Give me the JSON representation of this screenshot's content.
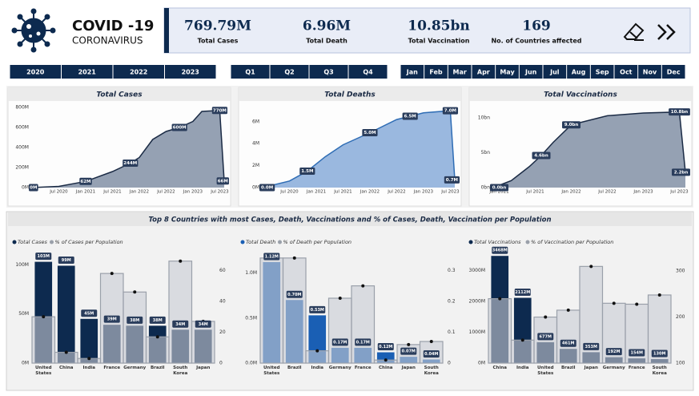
{
  "header": {
    "title": "COVID -19",
    "subtitle": "CORONAVIRUS"
  },
  "kpis": [
    {
      "value": "769.79M",
      "label": "Total Cases"
    },
    {
      "value": "6.96M",
      "label": "Total Death"
    },
    {
      "value": "10.85bn",
      "label": "Total Vaccination"
    },
    {
      "value": "169",
      "label": "No. of Countries affected"
    }
  ],
  "filters": {
    "years": [
      "2020",
      "2021",
      "2022",
      "2023"
    ],
    "quarters": [
      "Q1",
      "Q2",
      "Q3",
      "Q4"
    ],
    "months": [
      "Jan",
      "Feb",
      "Mar",
      "Apr",
      "May",
      "Jun",
      "Jul",
      "Aug",
      "Sep",
      "Oct",
      "Nov",
      "Dec"
    ]
  },
  "section_title": "Top 8 Countries with most Cases, Death, Vaccinations and % of Cases, Death, Vaccination per Population",
  "chart_data": [
    {
      "type": "area",
      "title": "Total Cases",
      "color": "#8a97ab",
      "line_color": "#1b2b45",
      "x": [
        "Jan 2020",
        "Jul 2020",
        "Jan 2021",
        "Jul 2021",
        "Nov 2021",
        "Jan 2022",
        "Apr 2022",
        "Jul 2022",
        "Oct 2022",
        "Jan 2023",
        "Mar 2023",
        "Jul 2023",
        "Aug 2023"
      ],
      "values": [
        0,
        12,
        62,
        160,
        244,
        300,
        480,
        560,
        600,
        660,
        760,
        770,
        66
      ],
      "value_labels": [
        "0M",
        null,
        "62M",
        null,
        "244M",
        null,
        null,
        null,
        "600M",
        null,
        null,
        "770M",
        "66M"
      ],
      "ylim": [
        0,
        800
      ],
      "yticks": [
        {
          "value": 0,
          "label": "0M"
        },
        {
          "value": 200,
          "label": "200M"
        },
        {
          "value": 400,
          "label": "400M"
        },
        {
          "value": 600,
          "label": "600M"
        },
        {
          "value": 800,
          "label": "800M"
        }
      ],
      "xticks": [
        "Jul 2020",
        "Jan 2021",
        "Jul 2021",
        "Jan 2022",
        "Jul 2022",
        "Jan 2023",
        "Jul 2023"
      ]
    },
    {
      "type": "area",
      "title": "Total Deaths",
      "color": "#8fb0dc",
      "line_color": "#2f6db5",
      "x": [
        "Jan 2020",
        "Jul 2020",
        "Nov 2020",
        "Mar 2021",
        "Jul 2021",
        "Jan 2022",
        "Jul 2022",
        "Oct 2022",
        "Jan 2023",
        "Jul 2023",
        "Aug 2023"
      ],
      "values": [
        0,
        0.6,
        1.5,
        2.8,
        3.9,
        5.0,
        6.2,
        6.5,
        6.8,
        7.0,
        0.7
      ],
      "value_labels": [
        "0.0M",
        null,
        "1.5M",
        null,
        null,
        "5.0M",
        null,
        "6.5M",
        null,
        "7.0M",
        "0.7M"
      ],
      "ylim": [
        0,
        7.3
      ],
      "yticks": [
        {
          "value": 0,
          "label": "0M"
        },
        {
          "value": 2,
          "label": "2M"
        },
        {
          "value": 4,
          "label": "4M"
        },
        {
          "value": 6,
          "label": "6M"
        }
      ],
      "xticks": [
        "Jul 2020",
        "Jan 2021",
        "Jul 2021",
        "Jan 2022",
        "Jul 2022",
        "Jan 2023",
        "Jul 2023"
      ]
    },
    {
      "type": "area",
      "title": "Total Vaccinations",
      "color": "#8a97ab",
      "line_color": "#1b2b45",
      "x": [
        "Dec 2020",
        "Mar 2021",
        "Jun 2021",
        "Aug 2021",
        "Oct 2021",
        "Jan 2022",
        "Jul 2022",
        "Jan 2023",
        "Jul 2023",
        "Aug 2023"
      ],
      "values": [
        0,
        1,
        3,
        4.6,
        6.5,
        9.0,
        10.3,
        10.7,
        10.85,
        2.2
      ],
      "value_labels": [
        "0.0bn",
        null,
        null,
        "4.6bn",
        null,
        "9.0bn",
        null,
        null,
        "10.8bn",
        "2.2bn"
      ],
      "ylim": [
        0,
        11.5
      ],
      "yticks": [
        {
          "value": 0,
          "label": "0bn"
        },
        {
          "value": 5,
          "label": "5bn"
        },
        {
          "value": 10,
          "label": "10bn"
        }
      ],
      "xticks": [
        "Jan 2021",
        "Jul 2021",
        "Jan 2022",
        "Jul 2022",
        "Jan 2023",
        "Jul 2023"
      ]
    },
    {
      "type": "combo",
      "categories": [
        "United States",
        "China",
        "India",
        "France",
        "Germany",
        "Brazil",
        "South Korea",
        "Japan"
      ],
      "series": [
        {
          "name": "Total Cases",
          "color": "#0d2a4f",
          "values": [
            103,
            99,
            45,
            39,
            38,
            38,
            34,
            34
          ],
          "value_labels": [
            "103M",
            "99M",
            "45M",
            "39M",
            "38M",
            "38M",
            "34M",
            "34M"
          ]
        },
        {
          "name": "% of Cases per Population",
          "color": "#c8ccd3",
          "axis": "y2",
          "values": [
            30,
            7,
            3,
            58,
            46,
            17,
            66,
            27
          ]
        }
      ],
      "ylim": [
        0,
        110
      ],
      "yticks": [
        {
          "value": 0,
          "label": "0M"
        },
        {
          "value": 50,
          "label": "50M"
        },
        {
          "value": 100,
          "label": "100M"
        }
      ],
      "y2lim": [
        0,
        70
      ],
      "y2ticks": [
        0,
        20,
        40,
        60
      ]
    },
    {
      "type": "combo",
      "categories": [
        "United States",
        "Brazil",
        "India",
        "Germany",
        "France",
        "China",
        "Japan",
        "South Korea"
      ],
      "series": [
        {
          "name": "Total Death",
          "color": "#1a5fb4",
          "values": [
            1.12,
            0.7,
            0.53,
            0.17,
            0.17,
            0.12,
            0.07,
            0.04
          ],
          "value_labels": [
            "1.12M",
            "0.70M",
            "0.53M",
            "0.17M",
            "0.17M",
            "0.12M",
            "0.07M",
            "0.04M"
          ]
        },
        {
          "name": "% of Death per Population",
          "color": "#c8ccd3",
          "axis": "y2",
          "values": [
            0.34,
            0.34,
            0.04,
            0.21,
            0.25,
            0.01,
            0.06,
            0.07
          ]
        }
      ],
      "ylim": [
        0,
        1.2
      ],
      "yticks": [
        {
          "value": 0,
          "label": "0.0M"
        },
        {
          "value": 0.5,
          "label": "0.5M"
        },
        {
          "value": 1.0,
          "label": "1.0M"
        }
      ],
      "y2lim": [
        0,
        0.35
      ],
      "y2ticks": [
        0,
        0.1,
        0.2,
        0.3
      ]
    },
    {
      "type": "combo",
      "categories": [
        "China",
        "India",
        "United States",
        "Brazil",
        "Japan",
        "Germany",
        "France",
        "South Korea"
      ],
      "series": [
        {
          "name": "Total Vaccinations",
          "color": "#0d2a4f",
          "values": [
            3468,
            2112,
            677,
            461,
            353,
            192,
            154,
            130
          ],
          "value_labels": [
            "3468M",
            "2112M",
            "677M",
            "461M",
            "353M",
            "192M",
            "154M",
            "130M"
          ]
        },
        {
          "name": "% of Vaccination per Population",
          "color": "#c8ccd3",
          "axis": "y2",
          "values": [
            240,
            150,
            200,
            215,
            310,
            230,
            228,
            248
          ]
        }
      ],
      "ylim": [
        0,
        3500
      ],
      "yticks": [
        {
          "value": 0,
          "label": "0M"
        },
        {
          "value": 1000,
          "label": "1000M"
        },
        {
          "value": 2000,
          "label": "2000M"
        },
        {
          "value": 3000,
          "label": "3000M"
        }
      ],
      "y2lim": [
        100,
        335
      ],
      "y2ticks": [
        100,
        200,
        300
      ]
    }
  ]
}
